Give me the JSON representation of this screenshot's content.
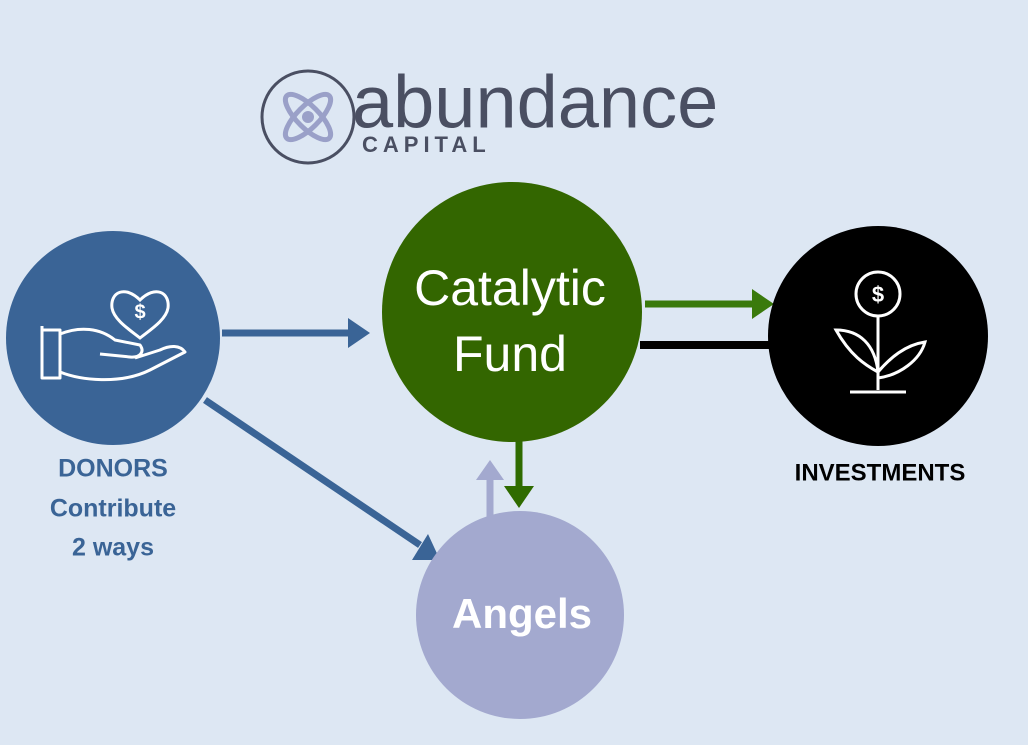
{
  "logo": {
    "name": "abundance",
    "tagline": "CAPITAL"
  },
  "nodes": [
    {
      "id": "donors",
      "label_lines": [
        "DONORS",
        "Contribute",
        "2 ways"
      ],
      "icon_symbol": "$"
    },
    {
      "id": "fund",
      "label_lines": [
        "Catalytic",
        "Fund"
      ]
    },
    {
      "id": "investments",
      "label_lines": [
        "INVESTMENTS"
      ],
      "icon_symbol": "$"
    },
    {
      "id": "angels",
      "label_lines": [
        "Angels"
      ]
    }
  ]
}
